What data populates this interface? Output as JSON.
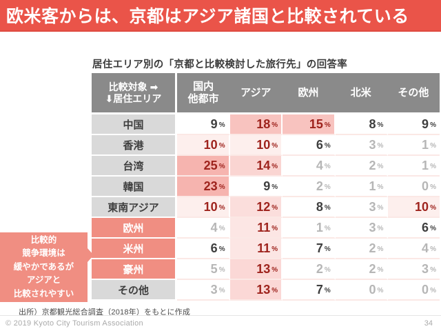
{
  "slide": {
    "title": "欧米客からは、京都はアジア諸国と比較されている",
    "subtitle": "居住エリア別の「京都と比較検討した旅行先」の回答率",
    "source": "出所）京都観光総合調査（2018年）をもとに作成",
    "copyright": "© 2019 Kyoto City Tourism Association",
    "page_number": "34"
  },
  "callout": {
    "text": "比較的\n競争環境は\n緩やかであるが\nアジアと\n比較されやすい"
  },
  "chart_data": {
    "type": "table",
    "subtype": "heatmap",
    "title": "居住エリア別の「京都と比較検討した旅行先」の回答率",
    "corner_header": [
      "比較対象 ➡",
      "⬇居住エリア"
    ],
    "columns": [
      "国内\n他都市",
      "アジア",
      "欧州",
      "北米",
      "その他"
    ],
    "unit": "%",
    "rows": [
      {
        "label": "中国",
        "label_highlight": false,
        "values": [
          9,
          18,
          15,
          8,
          9
        ]
      },
      {
        "label": "香港",
        "label_highlight": false,
        "values": [
          10,
          10,
          6,
          3,
          1
        ]
      },
      {
        "label": "台湾",
        "label_highlight": false,
        "values": [
          25,
          14,
          4,
          2,
          1
        ]
      },
      {
        "label": "韓国",
        "label_highlight": false,
        "values": [
          23,
          9,
          2,
          1,
          0
        ]
      },
      {
        "label": "東南アジア",
        "label_highlight": false,
        "values": [
          10,
          12,
          8,
          3,
          10
        ]
      },
      {
        "label": "欧州",
        "label_highlight": true,
        "values": [
          4,
          11,
          1,
          3,
          6
        ]
      },
      {
        "label": "米州",
        "label_highlight": true,
        "values": [
          6,
          11,
          7,
          2,
          4
        ]
      },
      {
        "label": "豪州",
        "label_highlight": true,
        "values": [
          5,
          13,
          2,
          2,
          3
        ]
      },
      {
        "label": "その他",
        "label_highlight": false,
        "values": [
          3,
          13,
          7,
          0,
          0
        ]
      }
    ],
    "legend_note": "values ≥10% highlighted dark-red on pink; 6–9% dark gray; ≤5% light gray"
  },
  "colors": {
    "banner_red": "#ea5449",
    "header_gray": "#8a8a8a",
    "row_label_gray": "#d9d9d9",
    "salmon_accent": "#f08e82",
    "value_red": "#9e231d",
    "value_dark": "#3f3f3f",
    "value_gray": "#b6b6b6",
    "heat_base_rgb": "238,105,95"
  }
}
